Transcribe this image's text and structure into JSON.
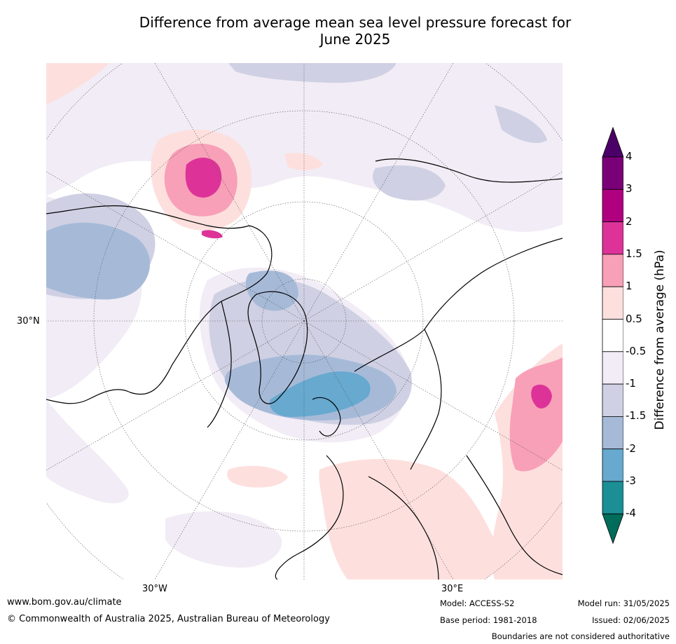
{
  "title_line1": "Difference from average mean sea level pressure forecast for",
  "title_line2": "June 2025",
  "map": {
    "lat_labels": [
      {
        "text": "30°N"
      }
    ],
    "lon_labels": [
      {
        "text": "30°W"
      },
      {
        "text": "30°E"
      }
    ]
  },
  "colorbar": {
    "label": "Difference from average (hPa)",
    "ticks": [
      "4",
      "3",
      "2",
      "1.5",
      "1",
      "0.5",
      "-0.5",
      "-1",
      "-1.5",
      "-2",
      "-3",
      "-4"
    ],
    "colors": [
      "#4b0067",
      "#7a0077",
      "#b00080",
      "#dd3399",
      "#f8a0b8",
      "#fde0de",
      "#ffffff",
      "#f1ecf5",
      "#cfd0e3",
      "#a6bad8",
      "#67a9cf",
      "#1b8f95",
      "#016c59"
    ]
  },
  "footer": {
    "url": "www.bom.gov.au/climate",
    "copyright": "© Commonwealth of Australia 2025, Australian Bureau of Meteorology",
    "model": "Model: ACCESS-S2",
    "base_period": "Base period: 1981-2018",
    "model_run": "Model run: 31/05/2025",
    "issued": "Issued: 02/06/2025",
    "disclaimer": "Boundaries are not considered authoritative"
  }
}
